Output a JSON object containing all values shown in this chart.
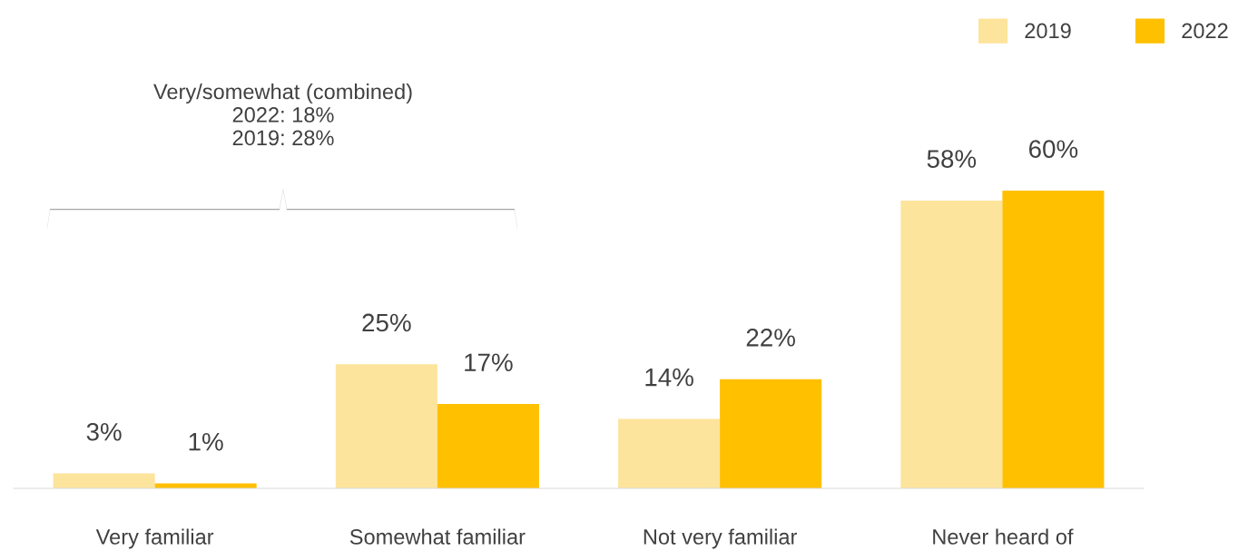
{
  "chart_data": {
    "type": "bar",
    "categories": [
      "Very familiar",
      "Somewhat familiar",
      "Not very familiar",
      "Never heard of"
    ],
    "series": [
      {
        "name": "2019",
        "color": "#fde49c",
        "values": [
          3,
          25,
          14,
          58
        ],
        "value_labels": [
          "3%",
          "25%",
          "14%",
          "58%"
        ]
      },
      {
        "name": "2022",
        "color": "#ffc000",
        "values": [
          1,
          17,
          22,
          60
        ],
        "value_labels": [
          "1%",
          "17%",
          "22%",
          "60%"
        ]
      }
    ],
    "legend": "top right",
    "grid": false,
    "annotations": [
      "Very/somewhat (combined)\n2022: 18%\n2019: 28%"
    ]
  }
}
